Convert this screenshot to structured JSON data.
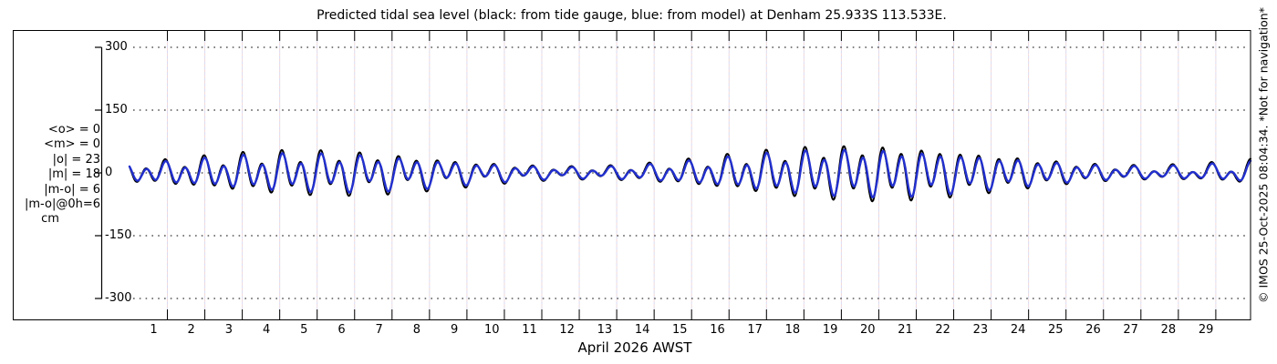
{
  "page": {
    "title": "Predicted tidal sea level (black: from tide gauge, blue: from model) at Denham 25.933S 113.533E.",
    "attribution": "© IMOS 25-Oct-2025 08:04:34. *Not for navigation*"
  },
  "stats_block": {
    "lines": [
      "<o> = 0",
      "<m> = 0",
      "|o| = 23",
      "|m| = 18",
      "|m-o| = 6",
      "|m-o|@0h=6",
      "cm"
    ]
  },
  "chart_data": {
    "type": "line",
    "title": "Predicted tidal sea level (black: from tide gauge, blue: from model) at Denham 25.933S 113.533E.",
    "xlabel": "April 2026 AWST",
    "ylabel": "",
    "y_unit": "cm",
    "y_ticks": [
      300,
      150,
      0,
      -150,
      -300
    ],
    "ylim": [
      -352,
      341
    ],
    "x_ticks": [
      1,
      2,
      3,
      4,
      5,
      6,
      7,
      8,
      9,
      10,
      11,
      12,
      13,
      14,
      15,
      16,
      17,
      18,
      19,
      20,
      21,
      22,
      23,
      24,
      25,
      26,
      27,
      28,
      29
    ],
    "x_range_days": [
      0,
      29.94
    ],
    "grid": {
      "horizontal": "black dotted at each y tick",
      "vertical": "pale pink/lavender dashed at each day boundary"
    },
    "legend_position": "in title",
    "station": "Denham",
    "latitude": "25.933S",
    "longitude": "113.533E",
    "timezone": "AWST",
    "month": "April 2026",
    "stats": {
      "mean_o_cm": 0,
      "mean_m_cm": 0,
      "abs_o_cm": 23,
      "abs_m_cm": 18,
      "abs_m_minus_o_cm": 6,
      "abs_m_minus_o_at_0h_cm": 6
    },
    "series": [
      {
        "name": "tide gauge",
        "legend": "black: from tide gauge",
        "color": "#000000",
        "amp_scale": 1.16,
        "lead_days": 0.015,
        "stroke_width": 2.0
      },
      {
        "name": "model",
        "legend": "blue: from model",
        "color": "#2230cf",
        "amp_scale": 1.0,
        "lead_days": 0,
        "stroke_width": 2.4
      }
    ],
    "harmonics": {
      "description": "mixed semidiurnal tide, level(t cm) = A2(t)cos(2pi t/P2 + ph2) + A1(t)cos(2pi t/P1 + ph1); spring peaks near days 5 and 20 (~±60 cm), neaps near days 12.5 and 27 (~±25 cm)",
      "semidiurnal": {
        "period_days": 0.5175,
        "phase_rad": 0.8,
        "amp_cm": 25,
        "mod1_amp_cm": 15,
        "mod1_period_days": 14.77,
        "mod1_peak_day": 19.8,
        "mod2_amp_cm": 5,
        "mod2_period_days": 29.53,
        "mod2_peak_day": 20
      },
      "diurnal": {
        "period_days": 1.0758,
        "phase_rad": 0.8,
        "amp_cm": 11,
        "mod1_amp_cm": 5,
        "mod1_period_days": 13.66,
        "mod1_peak_day": 19
      }
    },
    "colors": {
      "frame": "#000000",
      "h_grid": "#000000",
      "v_grid_pink": "#f2d8d8",
      "v_grid_lavender": "#d8daf2"
    }
  }
}
